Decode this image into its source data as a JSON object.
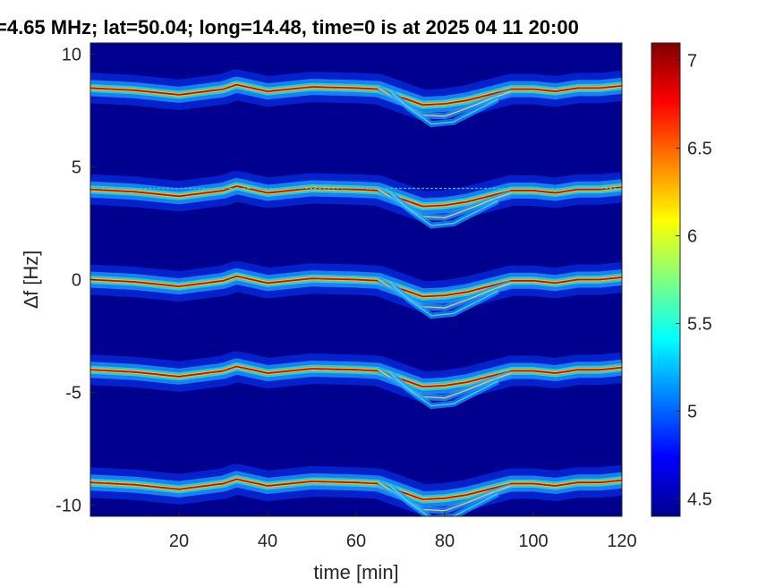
{
  "chart_data": {
    "type": "heatmap",
    "title": "=4.65 MHz;  lat=50.04; long=14.48, time=0 is at 2025 04 11 20:00",
    "xlabel": "time [min]",
    "ylabel": "∆f [Hz]",
    "xlim": [
      0,
      120
    ],
    "ylim": [
      -10.5,
      10.5
    ],
    "x_ticks": [
      20,
      40,
      60,
      80,
      100,
      120
    ],
    "y_ticks": [
      -10,
      -5,
      0,
      5,
      10
    ],
    "x_tick_labels": [
      "20",
      "40",
      "60",
      "80",
      "100",
      "120"
    ],
    "y_tick_labels": [
      "-10",
      "-5",
      "0",
      "5",
      "10"
    ],
    "colorbar": {
      "range": [
        4.4,
        7.1
      ],
      "ticks": [
        4.5,
        5,
        5.5,
        6,
        6.5,
        7
      ],
      "tick_labels": [
        "4.5",
        "5",
        "5.5",
        "6",
        "6.5",
        "7"
      ],
      "colormap": "jet"
    },
    "background_color": "#00008f",
    "bands": [
      {
        "center": 8.5
      },
      {
        "center": 4.0
      },
      {
        "center": 0.0
      },
      {
        "center": -4.0
      },
      {
        "center": -9.0
      }
    ],
    "doppler_profile": {
      "t": [
        0,
        10,
        20,
        30,
        33,
        40,
        50,
        60,
        65,
        70,
        75,
        80,
        85,
        90,
        95,
        100,
        105,
        110,
        115,
        120
      ],
      "df": [
        0,
        -0.1,
        -0.3,
        -0.05,
        0.15,
        -0.15,
        0.05,
        0.0,
        -0.05,
        -0.4,
        -0.75,
        -0.7,
        -0.55,
        -0.3,
        -0.05,
        -0.05,
        -0.15,
        0.0,
        0.0,
        0.1
      ]
    },
    "secondary_trace": {
      "t": [
        65,
        70,
        75,
        80,
        85,
        90,
        95
      ],
      "df": [
        0.0,
        -0.6,
        -1.2,
        -1.25,
        -0.9,
        -0.5,
        -0.15
      ]
    },
    "tertiary_trace": {
      "t": [
        68,
        72,
        77,
        82,
        87,
        92
      ],
      "df": [
        -0.2,
        -0.9,
        -1.6,
        -1.5,
        -1.0,
        -0.5
      ]
    },
    "horizontal_marker": {
      "df": 4.05,
      "t_range": [
        0,
        120
      ],
      "color": "#30c0e0"
    }
  }
}
